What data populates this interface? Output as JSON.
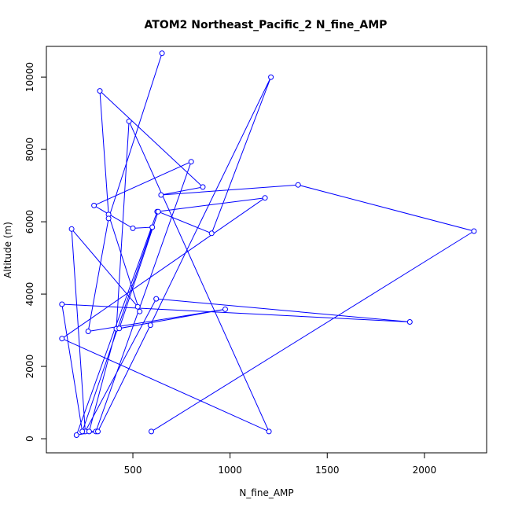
{
  "chart_data": {
    "type": "line",
    "title": "ATOM2 Northeast_Pacific_2 N_fine_AMP",
    "xlabel": "N_fine_AMP",
    "ylabel": "Altitude (m)",
    "xlim": [
      55,
      2320
    ],
    "ylim": [
      -390,
      10850
    ],
    "xticks": [
      500,
      1000,
      1500,
      2000
    ],
    "yticks": [
      0,
      2000,
      4000,
      6000,
      8000,
      10000
    ],
    "grid": false,
    "line_color": "#0000ff",
    "marker": "open-circle",
    "series": [
      {
        "x": [
          595,
          2255,
          1350,
          645,
          860,
          330,
          375,
          535,
          525,
          185,
          255,
          620,
          1925,
          135,
          240,
          600,
          500,
          300,
          800,
          310,
          210,
          625,
          1180,
          135,
          1200,
          480,
          415,
          275,
          320,
          590,
          1210,
          905,
          630,
          430,
          975,
          270,
          375,
          650
        ],
        "y": [
          200,
          5740,
          7020,
          6740,
          6960,
          9620,
          6200,
          3520,
          3650,
          5800,
          200,
          3870,
          3230,
          3720,
          200,
          5850,
          5820,
          6450,
          7660,
          200,
          100,
          6280,
          6660,
          2770,
          200,
          8780,
          3040,
          200,
          200,
          3140,
          10000,
          5680,
          6280,
          3050,
          3580,
          2970,
          6090,
          10660
        ]
      }
    ]
  }
}
